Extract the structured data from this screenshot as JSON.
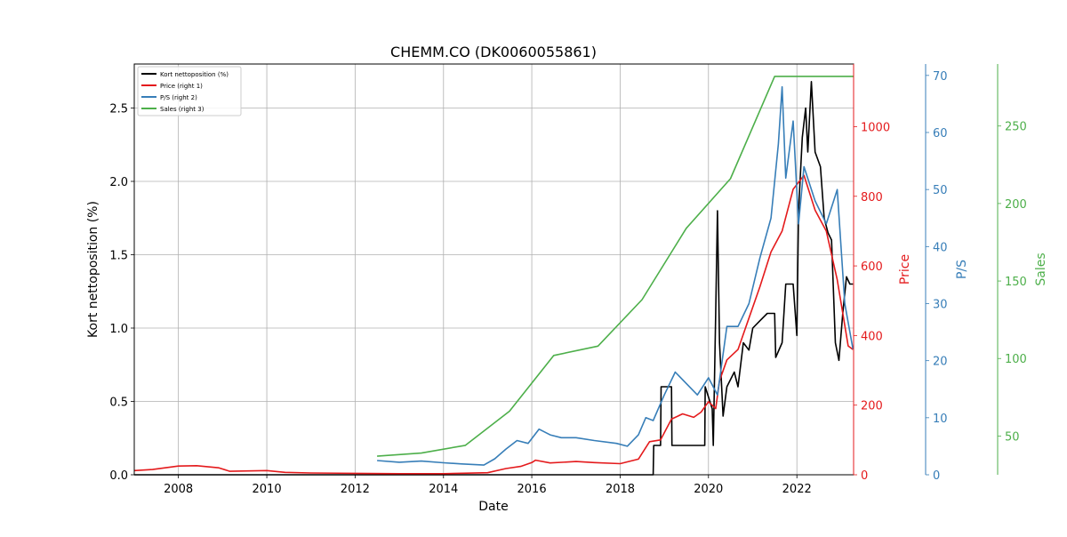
{
  "chart_data": {
    "type": "line",
    "title": "CHEMM.CO (DK0060055861)",
    "xlabel": "Date",
    "ylabel": "Kort nettoposition (%)",
    "x_range": [
      "2007-01-01",
      "2023-04-15"
    ],
    "x_ticks": [
      "2008",
      "2010",
      "2012",
      "2014",
      "2016",
      "2018",
      "2020",
      "2022"
    ],
    "grid": true,
    "legend_position": "top-left",
    "axes": {
      "left": {
        "label": "Kort nettoposition (%)",
        "ylim": [
          0,
          2.8
        ],
        "ticks": [
          "0.0",
          "0.5",
          "1.0",
          "1.5",
          "2.0",
          "2.5"
        ],
        "color": "#000000"
      },
      "right1": {
        "label": "Price",
        "ylim": [
          0,
          1180
        ],
        "ticks": [
          "0",
          "200",
          "400",
          "600",
          "800",
          "1000"
        ],
        "color": "#e41a1c"
      },
      "right2": {
        "label": "P/S",
        "ylim": [
          0,
          72
        ],
        "ticks": [
          "0",
          "10",
          "20",
          "30",
          "40",
          "50",
          "60",
          "70"
        ],
        "color": "#377eb8"
      },
      "right3": {
        "label": "Sales",
        "ylim": [
          25,
          290
        ],
        "ticks": [
          "50",
          "100",
          "150",
          "200",
          "250"
        ],
        "color": "#4daf4a"
      }
    },
    "series": [
      {
        "name": "Kort nettoposition (%)",
        "axis": "left",
        "color": "#000000",
        "points": [
          [
            "2007-01-01",
            0
          ],
          [
            "2018-10-01",
            0
          ],
          [
            "2018-10-05",
            0.2
          ],
          [
            "2018-12-01",
            0.2
          ],
          [
            "2018-12-05",
            0.6
          ],
          [
            "2019-03-01",
            0.6
          ],
          [
            "2019-03-05",
            0.2
          ],
          [
            "2019-12-01",
            0.2
          ],
          [
            "2019-12-05",
            0.6
          ],
          [
            "2020-02-01",
            0.45
          ],
          [
            "2020-02-10",
            0.2
          ],
          [
            "2020-03-01",
            1.1
          ],
          [
            "2020-03-15",
            1.8
          ],
          [
            "2020-04-01",
            0.9
          ],
          [
            "2020-05-01",
            0.4
          ],
          [
            "2020-06-01",
            0.6
          ],
          [
            "2020-08-01",
            0.7
          ],
          [
            "2020-09-01",
            0.6
          ],
          [
            "2020-10-15",
            0.9
          ],
          [
            "2020-12-01",
            0.85
          ],
          [
            "2021-01-01",
            1.0
          ],
          [
            "2021-03-01",
            1.05
          ],
          [
            "2021-05-01",
            1.1
          ],
          [
            "2021-07-01",
            1.1
          ],
          [
            "2021-07-10",
            0.8
          ],
          [
            "2021-09-01",
            0.9
          ],
          [
            "2021-10-01",
            1.3
          ],
          [
            "2021-12-01",
            1.3
          ],
          [
            "2022-01-01",
            0.95
          ],
          [
            "2022-01-15",
            1.8
          ],
          [
            "2022-02-15",
            2.3
          ],
          [
            "2022-03-15",
            2.5
          ],
          [
            "2022-04-01",
            2.2
          ],
          [
            "2022-05-01",
            2.68
          ],
          [
            "2022-06-01",
            2.2
          ],
          [
            "2022-07-15",
            2.1
          ],
          [
            "2022-08-15",
            1.75
          ],
          [
            "2022-09-15",
            1.65
          ],
          [
            "2022-10-15",
            1.6
          ],
          [
            "2022-11-15",
            0.9
          ],
          [
            "2022-12-15",
            0.78
          ],
          [
            "2023-01-15",
            1.1
          ],
          [
            "2023-02-15",
            1.35
          ],
          [
            "2023-03-15",
            1.3
          ],
          [
            "2023-04-10",
            1.3
          ]
        ]
      },
      {
        "name": "Price (right 1)",
        "axis": "right1",
        "color": "#e41a1c",
        "points": [
          [
            "2007-01-01",
            12
          ],
          [
            "2007-06-01",
            15
          ],
          [
            "2008-01-01",
            25
          ],
          [
            "2008-06-01",
            26
          ],
          [
            "2008-12-01",
            20
          ],
          [
            "2009-03-01",
            10
          ],
          [
            "2010-01-01",
            12
          ],
          [
            "2010-06-01",
            7
          ],
          [
            "2011-01-01",
            5
          ],
          [
            "2012-01-01",
            4
          ],
          [
            "2013-01-01",
            3
          ],
          [
            "2014-01-01",
            3
          ],
          [
            "2015-01-01",
            6
          ],
          [
            "2015-06-01",
            18
          ],
          [
            "2015-10-01",
            24
          ],
          [
            "2016-01-01",
            35
          ],
          [
            "2016-02-01",
            42
          ],
          [
            "2016-06-01",
            34
          ],
          [
            "2017-01-01",
            38
          ],
          [
            "2017-06-01",
            35
          ],
          [
            "2018-01-01",
            32
          ],
          [
            "2018-06-01",
            45
          ],
          [
            "2018-09-01",
            95
          ],
          [
            "2018-12-01",
            100
          ],
          [
            "2019-03-01",
            160
          ],
          [
            "2019-06-01",
            175
          ],
          [
            "2019-09-01",
            165
          ],
          [
            "2019-11-01",
            180
          ],
          [
            "2020-01-01",
            210
          ],
          [
            "2020-03-01",
            190
          ],
          [
            "2020-04-01",
            270
          ],
          [
            "2020-06-01",
            330
          ],
          [
            "2020-09-01",
            360
          ],
          [
            "2020-12-01",
            450
          ],
          [
            "2021-03-01",
            540
          ],
          [
            "2021-06-01",
            640
          ],
          [
            "2021-09-01",
            700
          ],
          [
            "2021-12-01",
            820
          ],
          [
            "2022-03-01",
            860
          ],
          [
            "2022-06-01",
            760
          ],
          [
            "2022-09-01",
            700
          ],
          [
            "2022-12-01",
            560
          ],
          [
            "2023-03-01",
            370
          ],
          [
            "2023-04-10",
            360
          ]
        ]
      },
      {
        "name": "P/S (right 2)",
        "axis": "right2",
        "color": "#377eb8",
        "points": [
          [
            "2012-07-01",
            2.5
          ],
          [
            "2013-01-01",
            2.2
          ],
          [
            "2013-07-01",
            2.4
          ],
          [
            "2014-01-01",
            2.1
          ],
          [
            "2014-06-01",
            1.9
          ],
          [
            "2014-12-01",
            1.7
          ],
          [
            "2015-03-01",
            2.8
          ],
          [
            "2015-06-01",
            4.5
          ],
          [
            "2015-09-01",
            6
          ],
          [
            "2015-12-01",
            5.5
          ],
          [
            "2016-03-01",
            8
          ],
          [
            "2016-06-01",
            7
          ],
          [
            "2016-09-01",
            6.5
          ],
          [
            "2017-01-01",
            6.5
          ],
          [
            "2017-06-01",
            6
          ],
          [
            "2017-12-01",
            5.5
          ],
          [
            "2018-03-01",
            5
          ],
          [
            "2018-06-01",
            7
          ],
          [
            "2018-08-01",
            10
          ],
          [
            "2018-10-01",
            9.5
          ],
          [
            "2019-01-01",
            14
          ],
          [
            "2019-04-01",
            18
          ],
          [
            "2019-07-01",
            16
          ],
          [
            "2019-10-01",
            14
          ],
          [
            "2020-01-01",
            17
          ],
          [
            "2020-03-15",
            14
          ],
          [
            "2020-06-01",
            26
          ],
          [
            "2020-09-01",
            26
          ],
          [
            "2020-12-01",
            30
          ],
          [
            "2021-03-01",
            38
          ],
          [
            "2021-06-01",
            45
          ],
          [
            "2021-08-01",
            58
          ],
          [
            "2021-09-01",
            68
          ],
          [
            "2021-10-01",
            52
          ],
          [
            "2021-12-01",
            62
          ],
          [
            "2022-01-15",
            44
          ],
          [
            "2022-03-01",
            54
          ],
          [
            "2022-06-01",
            48
          ],
          [
            "2022-09-01",
            44
          ],
          [
            "2022-12-01",
            50
          ],
          [
            "2023-02-01",
            30
          ],
          [
            "2023-04-10",
            22
          ]
        ]
      },
      {
        "name": "Sales (right 3)",
        "axis": "right3",
        "color": "#4daf4a",
        "points": [
          [
            "2012-07-01",
            37
          ],
          [
            "2013-07-01",
            39
          ],
          [
            "2014-07-01",
            44
          ],
          [
            "2015-07-01",
            66
          ],
          [
            "2016-07-01",
            102
          ],
          [
            "2017-07-01",
            108
          ],
          [
            "2018-07-01",
            138
          ],
          [
            "2019-07-01",
            184
          ],
          [
            "2020-07-01",
            216
          ],
          [
            "2021-07-01",
            282
          ],
          [
            "2023-04-15",
            282
          ]
        ]
      }
    ]
  }
}
